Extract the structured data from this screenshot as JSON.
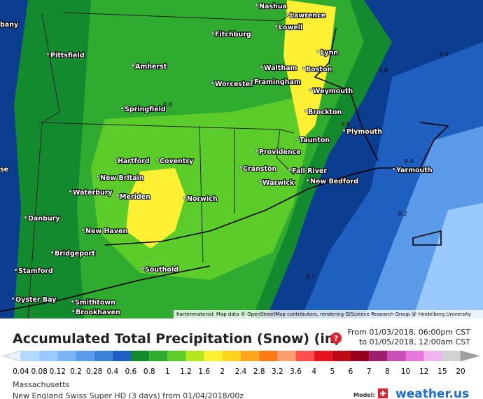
{
  "map": {
    "cities": [
      "Nashua",
      "Lawrence",
      "Lowell",
      "Fitchburg",
      "Lynn",
      "Pittsfield",
      "Amherst",
      "Waltham",
      "Boston",
      "Worcester",
      "Framingham",
      "Weymouth",
      "Springfield",
      "Brockton",
      "Plymouth",
      "Taunton",
      "Hartford",
      "Coventry",
      "Providence",
      "Cranston",
      "Fall River",
      "Yarmouth",
      "New Britain",
      "Warwick",
      "New Bedford",
      "Waterbury",
      "Meriden",
      "Norwich",
      "Danbury",
      "New Haven",
      "Bridgeport",
      "Southold",
      "Stamford",
      "Oyster Bay",
      "Smithtown",
      "Brookhaven",
      "bany",
      "se"
    ],
    "contour_labels": [
      "0.4",
      "0.8",
      "0.8",
      "0.8",
      "0.4",
      "0.2",
      "0.2"
    ],
    "attribution": "Kartenmaterial: Map data © OpenStreetMap contributors, rendering GIScience Research Group @ Heidelberg University"
  },
  "legend": {
    "title": "Accumulated Total Precipitation (Snow) (in)",
    "from": "From 01/03/2018, 06:00pm CST",
    "to": "to 01/05/2018, 12:00am CST",
    "ticks": [
      0.04,
      0.08,
      0.12,
      0.2,
      0.28,
      0.4,
      0.6,
      0.8,
      1,
      1.2,
      1.6,
      2,
      2.4,
      2.8,
      3.2,
      3.6,
      4,
      5,
      6,
      7,
      8,
      10,
      12,
      15,
      20
    ],
    "colors": [
      "#e6f2ff",
      "#b3d9ff",
      "#99c9ff",
      "#7ab4f5",
      "#5a9ae8",
      "#3a7fd8",
      "#1f5fbf",
      "#138a2e",
      "#2fab2f",
      "#5ccc2a",
      "#b4e61e",
      "#fff033",
      "#ffd21e",
      "#ffa51e",
      "#ff7a14",
      "#ff9e6e",
      "#ff5050",
      "#e6141e",
      "#be0a14",
      "#96001e",
      "#9e1e6e",
      "#c850b4",
      "#e678dc",
      "#f0b4f0",
      "#d2d2d2",
      "#a0a0a0"
    ]
  },
  "footer": {
    "region": "Massachusetts",
    "model": "New England Swiss Super HD (3 days) from 01/04/2018/00z",
    "model_label": "Model:",
    "brand": "weather.us"
  }
}
